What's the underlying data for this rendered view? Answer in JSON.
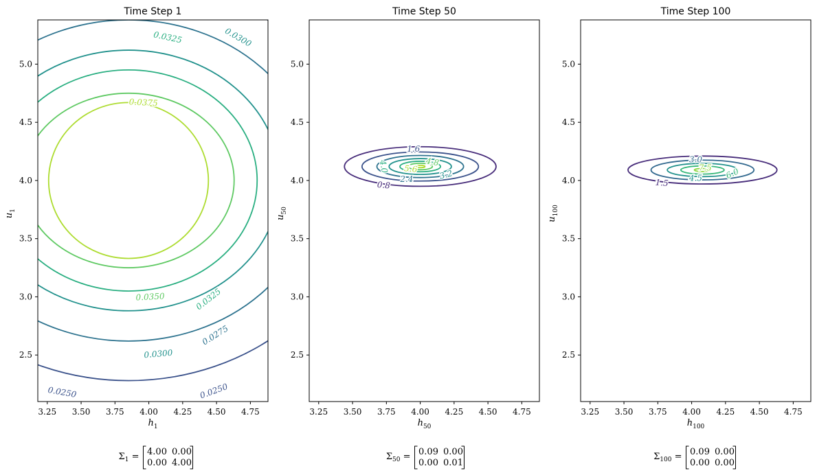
{
  "chart_data": [
    {
      "type": "contour",
      "title": "Time Step 1",
      "xlabel": "h",
      "xlabel_sub": "1",
      "ylabel": "u",
      "ylabel_sub": "1",
      "xlim": [
        3.18,
        4.88
      ],
      "ylim": [
        2.1,
        5.38
      ],
      "xticks": [
        "3.25",
        "3.50",
        "3.75",
        "4.00",
        "4.25",
        "4.50",
        "4.75"
      ],
      "xtick_values": [
        3.25,
        3.5,
        3.75,
        4.0,
        4.25,
        4.5,
        4.75
      ],
      "yticks": [
        "2.5",
        "3.0",
        "3.5",
        "4.0",
        "4.5",
        "5.0"
      ],
      "ytick_values": [
        2.5,
        3.0,
        3.5,
        4.0,
        4.5,
        5.0
      ],
      "center": [
        3.85,
        4.0
      ],
      "levels": [
        {
          "value": 0.025,
          "rx": 1.72,
          "ry": 1.72,
          "color": "#3b528b"
        },
        {
          "value": 0.0275,
          "rx": 1.38,
          "ry": 1.38,
          "color": "#2c728e"
        },
        {
          "value": 0.03,
          "rx": 1.12,
          "ry": 1.12,
          "color": "#21918c"
        },
        {
          "value": 0.0325,
          "rx": 0.95,
          "ry": 0.95,
          "color": "#28ae80"
        },
        {
          "value": 0.035,
          "rx": 0.78,
          "ry": 0.75,
          "color": "#5ec962"
        },
        {
          "value": 0.0375,
          "rx": 0.59,
          "ry": 0.67,
          "color": "#addc30"
        }
      ],
      "labels": [
        {
          "text": "0.0250",
          "x": 3.36,
          "y": 2.18,
          "color": "#3b528b",
          "angle": 10
        },
        {
          "text": "0.0250",
          "x": 4.48,
          "y": 2.19,
          "color": "#3b528b",
          "angle": -20
        },
        {
          "text": "0.0275",
          "x": 4.49,
          "y": 2.67,
          "color": "#2c728e",
          "angle": -32
        },
        {
          "text": "0.0300",
          "x": 4.07,
          "y": 2.51,
          "color": "#21918c",
          "angle": -5
        },
        {
          "text": "0.0300",
          "x": 4.66,
          "y": 5.23,
          "color": "#21918c",
          "angle": 30
        },
        {
          "text": "0.0325",
          "x": 4.44,
          "y": 2.98,
          "color": "#28ae80",
          "angle": -38
        },
        {
          "text": "0.0325",
          "x": 4.14,
          "y": 5.23,
          "color": "#28ae80",
          "angle": 12
        },
        {
          "text": "0.0350",
          "x": 4.01,
          "y": 3.0,
          "color": "#5ec962",
          "angle": -3
        },
        {
          "text": "0.0375",
          "x": 3.96,
          "y": 4.67,
          "color": "#addc30",
          "angle": 3
        }
      ],
      "matrix_label": "Σ",
      "matrix_sub": "1",
      "matrix": [
        [
          "4.00",
          "0.00"
        ],
        [
          "0.00",
          "4.00"
        ]
      ]
    },
    {
      "type": "contour",
      "title": "Time Step 50",
      "xlabel": "h",
      "xlabel_sub": "50",
      "ylabel": "u",
      "ylabel_sub": "50",
      "xlim": [
        3.18,
        4.88
      ],
      "ylim": [
        2.1,
        5.38
      ],
      "xticks": [
        "3.25",
        "3.50",
        "3.75",
        "4.00",
        "4.25",
        "4.50",
        "4.75"
      ],
      "xtick_values": [
        3.25,
        3.5,
        3.75,
        4.0,
        4.25,
        4.5,
        4.75
      ],
      "yticks": [
        "2.5",
        "3.0",
        "3.5",
        "4.0",
        "4.5",
        "5.0"
      ],
      "ytick_values": [
        2.5,
        3.0,
        3.5,
        4.0,
        4.5,
        5.0
      ],
      "center": [
        4.0,
        4.12
      ],
      "levels": [
        {
          "value": 0.8,
          "rx": 0.56,
          "ry": 0.17,
          "color": "#472c7a"
        },
        {
          "value": 1.6,
          "rx": 0.43,
          "ry": 0.125,
          "color": "#3b528b"
        },
        {
          "value": 2.4,
          "rx": 0.32,
          "ry": 0.095,
          "color": "#2c728e"
        },
        {
          "value": 3.2,
          "rx": 0.23,
          "ry": 0.068,
          "color": "#21918c"
        },
        {
          "value": 4.0,
          "rx": 0.15,
          "ry": 0.045,
          "color": "#28ae80"
        },
        {
          "value": 4.8,
          "rx": 0.09,
          "ry": 0.028,
          "color": "#5ec962"
        },
        {
          "value": 5.6,
          "rx": 0.035,
          "ry": 0.01,
          "color": "#addc30"
        }
      ],
      "labels": [
        {
          "text": "0.8",
          "x": 3.73,
          "y": 3.96,
          "color": "#472c7a",
          "angle": 5
        },
        {
          "text": "1.6",
          "x": 3.95,
          "y": 4.27,
          "color": "#3b528b",
          "angle": 0
        },
        {
          "text": "2.4",
          "x": 3.9,
          "y": 4.01,
          "color": "#2c728e",
          "angle": 0
        },
        {
          "text": "3.2",
          "x": 4.19,
          "y": 4.05,
          "color": "#21918c",
          "angle": -15
        },
        {
          "text": "4.0",
          "x": 3.73,
          "y": 4.12,
          "color": "#28ae80",
          "angle": 80
        },
        {
          "text": "4.8",
          "x": 4.09,
          "y": 4.16,
          "color": "#5ec962",
          "angle": 10
        },
        {
          "text": "5.6",
          "x": 3.93,
          "y": 4.1,
          "color": "#addc30",
          "angle": 5
        }
      ],
      "matrix_label": "Σ",
      "matrix_sub": "50",
      "matrix": [
        [
          "0.09",
          "0.00"
        ],
        [
          "0.00",
          "0.01"
        ]
      ]
    },
    {
      "type": "contour",
      "title": "Time Step 100",
      "xlabel": "h",
      "xlabel_sub": "100",
      "ylabel": "u",
      "ylabel_sub": "100",
      "xlim": [
        3.18,
        4.88
      ],
      "ylim": [
        2.1,
        5.38
      ],
      "xticks": [
        "3.25",
        "3.50",
        "3.75",
        "4.00",
        "4.25",
        "4.50",
        "4.75"
      ],
      "xtick_values": [
        3.25,
        3.5,
        3.75,
        4.0,
        4.25,
        4.5,
        4.75
      ],
      "yticks": [
        "2.5",
        "3.0",
        "3.5",
        "4.0",
        "4.5",
        "5.0"
      ],
      "ytick_values": [
        2.5,
        3.0,
        3.5,
        4.0,
        4.5,
        5.0
      ],
      "center": [
        4.08,
        4.09
      ],
      "levels": [
        {
          "value": 1.5,
          "rx": 0.55,
          "ry": 0.12,
          "color": "#472c7a"
        },
        {
          "value": 3.0,
          "rx": 0.38,
          "ry": 0.085,
          "color": "#31688e"
        },
        {
          "value": 4.5,
          "rx": 0.26,
          "ry": 0.057,
          "color": "#21918c"
        },
        {
          "value": 6.0,
          "rx": 0.16,
          "ry": 0.035,
          "color": "#35b779"
        },
        {
          "value": 7.5,
          "rx": 0.06,
          "ry": 0.013,
          "color": "#90d743"
        }
      ],
      "labels": [
        {
          "text": "1.5",
          "x": 3.78,
          "y": 3.98,
          "color": "#472c7a",
          "angle": 5
        },
        {
          "text": "3.0",
          "x": 4.03,
          "y": 4.18,
          "color": "#31688e",
          "angle": 0
        },
        {
          "text": "4.5",
          "x": 4.03,
          "y": 4.02,
          "color": "#21918c",
          "angle": 0
        },
        {
          "text": "6.0",
          "x": 4.3,
          "y": 4.06,
          "color": "#35b779",
          "angle": -25
        },
        {
          "text": "7.5",
          "x": 4.1,
          "y": 4.11,
          "color": "#90d743",
          "angle": 0
        }
      ],
      "matrix_label": "Σ",
      "matrix_sub": "100",
      "matrix": [
        [
          "0.09",
          "0.00"
        ],
        [
          "0.00",
          "0.00"
        ]
      ]
    }
  ]
}
